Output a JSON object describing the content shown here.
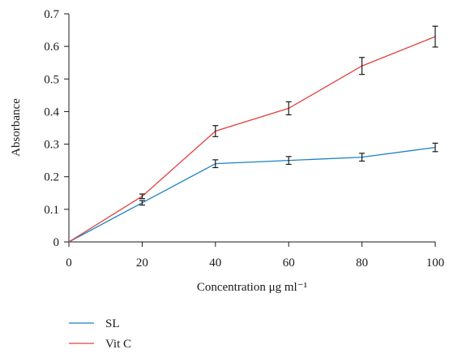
{
  "chart_data": {
    "type": "line",
    "title": "",
    "xlabel": "Concentration μg ml⁻¹",
    "ylabel": "Absorbance",
    "x": [
      0,
      20,
      40,
      60,
      80,
      100
    ],
    "xticks": [
      0,
      20,
      40,
      60,
      80,
      100
    ],
    "yticks": [
      0,
      0.1,
      0.2,
      0.3,
      0.4,
      0.5,
      0.6,
      0.7
    ],
    "xlim": [
      0,
      100
    ],
    "ylim": [
      0,
      0.7
    ],
    "grid": false,
    "legend_position": "bottom-left",
    "series": [
      {
        "name": "SL",
        "color": "#1f82c0",
        "values": [
          0,
          0.12,
          0.24,
          0.25,
          0.26,
          0.29
        ],
        "errors": [
          0,
          0.007,
          0.012,
          0.012,
          0.012,
          0.013
        ]
      },
      {
        "name": "Vit C",
        "color": "#e0413e",
        "values": [
          0,
          0.14,
          0.34,
          0.41,
          0.54,
          0.63
        ],
        "errors": [
          0,
          0.007,
          0.017,
          0.02,
          0.026,
          0.032
        ]
      }
    ]
  }
}
